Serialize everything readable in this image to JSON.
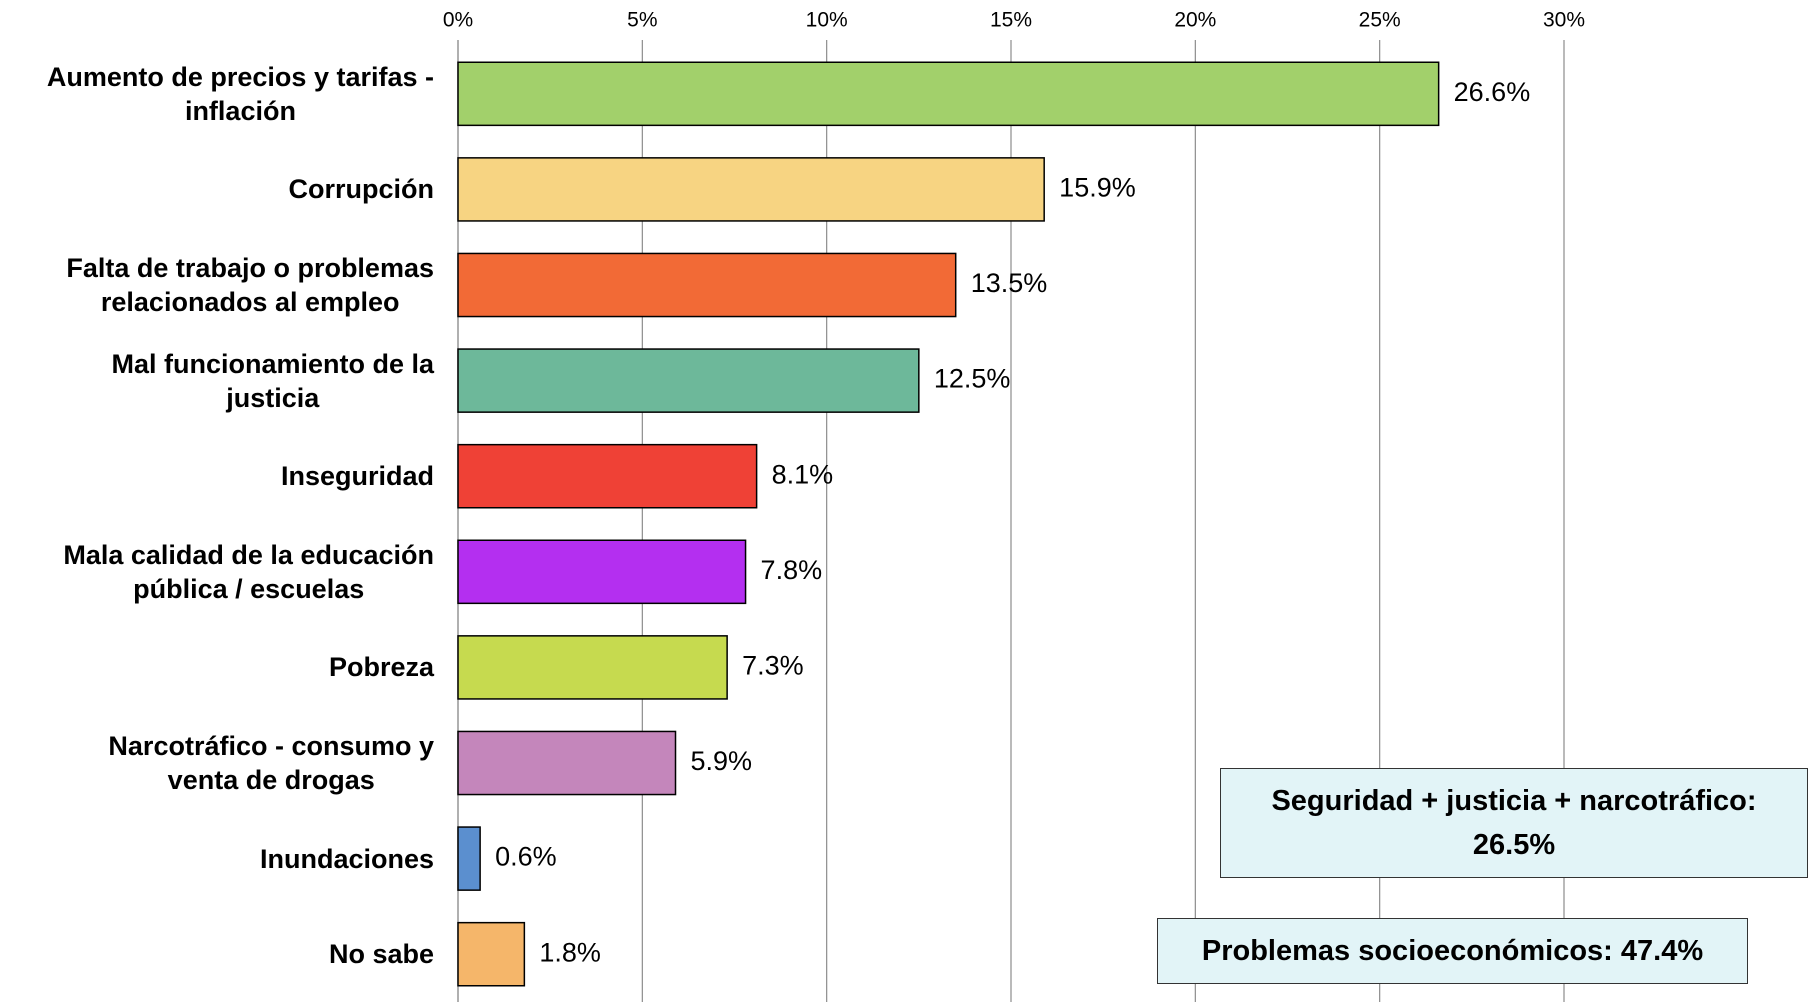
{
  "chart_data": {
    "type": "barh",
    "categories": [
      "Aumento de precios y tarifas -\ninflación",
      "Corrupción",
      "Falta de trabajo o problemas\nrelacionados al empleo",
      "Mal funcionamiento de la\njusticia",
      "Inseguridad",
      "Mala calidad de la educación\npública / escuelas",
      "Pobreza",
      "Narcotráfico - consumo y\nventa de drogas",
      "Inundaciones",
      "No sabe"
    ],
    "values": [
      26.6,
      15.9,
      13.5,
      12.5,
      8.1,
      7.8,
      7.3,
      5.9,
      0.6,
      1.8
    ],
    "value_labels": [
      "26.6%",
      "15.9%",
      "13.5%",
      "12.5%",
      "8.1%",
      "7.8%",
      "7.3%",
      "5.9%",
      "0.6%",
      "1.8%"
    ],
    "colors": [
      "#a2d06b",
      "#f7d482",
      "#f26a36",
      "#6db89a",
      "#ef4136",
      "#b42ff0",
      "#c6da4f",
      "#c486bb",
      "#5b8fcf",
      "#f5b66a"
    ],
    "xlim": [
      0,
      30
    ],
    "xticks": [
      {
        "value": 0,
        "label": "0%"
      },
      {
        "value": 5,
        "label": "5%"
      },
      {
        "value": 10,
        "label": "10%"
      },
      {
        "value": 15,
        "label": "15%"
      },
      {
        "value": 20,
        "label": "20%"
      },
      {
        "value": 25,
        "label": "25%"
      },
      {
        "value": 30,
        "label": "30%"
      }
    ],
    "grid": true,
    "annotations": [
      "Seguridad + justicia + narcotráfico:\n26.5%",
      "Problemas socioeconómicos: 47.4%"
    ]
  }
}
